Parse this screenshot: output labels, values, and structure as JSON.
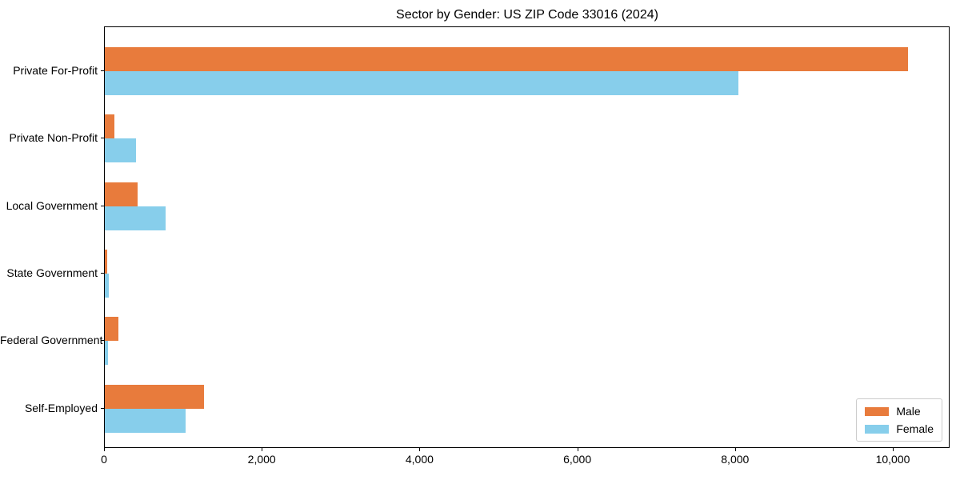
{
  "chart_data": {
    "type": "bar",
    "orientation": "horizontal",
    "title": "Sector by Gender: US ZIP Code 33016 (2024)",
    "categories": [
      "Private For-Profit",
      "Private Non-Profit",
      "Local Government",
      "State Government",
      "Federal Government",
      "Self-Employed"
    ],
    "series": [
      {
        "name": "Male",
        "color": "#e87b3c",
        "values": [
          10180,
          120,
          415,
          30,
          170,
          1260
        ]
      },
      {
        "name": "Female",
        "color": "#87ceeb",
        "values": [
          8030,
          395,
          770,
          50,
          45,
          1020
        ]
      }
    ],
    "xlabel": "",
    "ylabel": "",
    "xlim": [
      0,
      10720
    ],
    "x_ticks": [
      0,
      2000,
      4000,
      6000,
      8000,
      10000
    ],
    "x_tick_labels": [
      "0",
      "2,000",
      "4,000",
      "6,000",
      "8,000",
      "10,000"
    ],
    "grid": false,
    "legend_position": "lower right",
    "spine_color": "#000000",
    "background_color": "#ffffff"
  }
}
